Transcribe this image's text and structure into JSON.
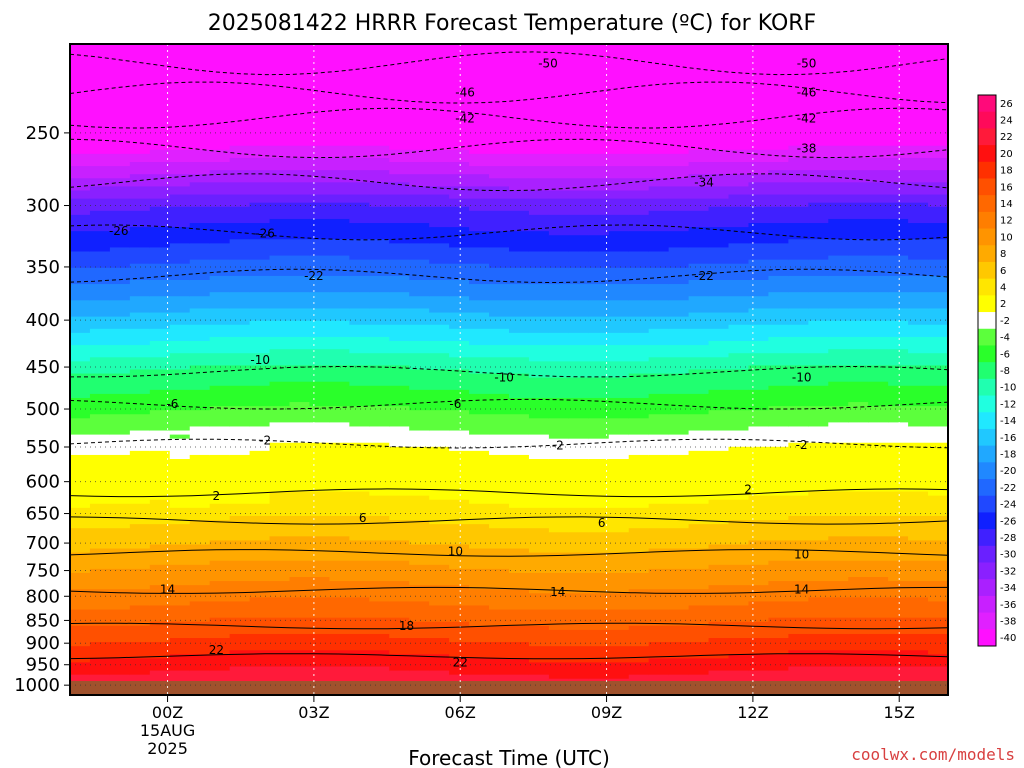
{
  "chart_data": {
    "type": "heatmap",
    "title": "2025081422 HRRR Forecast Temperature (ºC) for KORF",
    "xlabel": "Forecast Time (UTC)",
    "ylabel": "",
    "x_ticks": [
      "00Z",
      "03Z",
      "06Z",
      "09Z",
      "12Z",
      "15Z"
    ],
    "x_date": [
      "15AUG",
      "2025"
    ],
    "x_range": [
      -2,
      16
    ],
    "y_ticks": [
      250,
      300,
      350,
      400,
      450,
      500,
      550,
      600,
      650,
      700,
      750,
      800,
      850,
      900,
      950,
      1000
    ],
    "ylim_hPa": [
      200,
      1025
    ],
    "y_scale": "log-pressure",
    "grid": true,
    "colorbar": {
      "levels": [
        26,
        24,
        22,
        20,
        18,
        16,
        14,
        12,
        10,
        8,
        6,
        4,
        2,
        -2,
        -4,
        -6,
        -8,
        -10,
        -12,
        -14,
        -16,
        -18,
        -20,
        -22,
        -24,
        -26,
        -28,
        -30,
        -32,
        -34,
        -36,
        -38,
        -40
      ],
      "colors": [
        "#ff0a7a",
        "#ff0a5a",
        "#ff1a3a",
        "#ff1010",
        "#ff3000",
        "#ff5000",
        "#ff6800",
        "#ff7e00",
        "#ff9400",
        "#ffaa00",
        "#ffc800",
        "#ffe600",
        "#ffff00",
        "#ffffff",
        "#5cff3c",
        "#2aff2a",
        "#20ff70",
        "#20ffb0",
        "#20ffe0",
        "#20e8ff",
        "#20c8ff",
        "#20a8ff",
        "#2088ff",
        "#2068ff",
        "#2048ff",
        "#1020ff",
        "#4020ff",
        "#6a20ff",
        "#8a20ff",
        "#aa20ff",
        "#c820ff",
        "#e020ff",
        "#ff10ff"
      ]
    },
    "isotherm_labels": [
      {
        "value": "-50",
        "points": [
          [
            7.8,
            210
          ],
          [
            13.1,
            210
          ]
        ]
      },
      {
        "value": "-46",
        "points": [
          [
            6.1,
            226
          ],
          [
            13.1,
            226
          ]
        ]
      },
      {
        "value": "-42",
        "points": [
          [
            6.1,
            241
          ],
          [
            13.1,
            241
          ]
        ]
      },
      {
        "value": "-38",
        "points": [
          [
            13.1,
            260
          ]
        ]
      },
      {
        "value": "-34",
        "points": [
          [
            11.0,
            283
          ]
        ]
      },
      {
        "value": "-26",
        "points": [
          [
            -1.0,
            320
          ],
          [
            2.0,
            322
          ]
        ]
      },
      {
        "value": "-22",
        "points": [
          [
            3.0,
            358
          ],
          [
            11.0,
            358
          ]
        ]
      },
      {
        "value": "-10",
        "points": [
          [
            1.9,
            442
          ],
          [
            6.9,
            462
          ],
          [
            13.0,
            462
          ]
        ]
      },
      {
        "value": "-6",
        "points": [
          [
            0.1,
            494
          ],
          [
            5.9,
            494
          ]
        ]
      },
      {
        "value": "-2",
        "points": [
          [
            2.0,
            541
          ],
          [
            8.0,
            548
          ],
          [
            13.0,
            547
          ]
        ]
      },
      {
        "value": "2",
        "points": [
          [
            1.0,
            622
          ],
          [
            11.9,
            612
          ]
        ]
      },
      {
        "value": "6",
        "points": [
          [
            4.0,
            657
          ],
          [
            8.9,
            666
          ]
        ]
      },
      {
        "value": "10",
        "points": [
          [
            5.9,
            715
          ],
          [
            13.0,
            720
          ]
        ]
      },
      {
        "value": "14",
        "points": [
          [
            0.0,
            787
          ],
          [
            8.0,
            791
          ],
          [
            13.0,
            787
          ]
        ]
      },
      {
        "value": "18",
        "points": [
          [
            4.9,
            862
          ]
        ]
      },
      {
        "value": "22",
        "points": [
          [
            1.0,
            915
          ],
          [
            6.0,
            945
          ]
        ]
      }
    ]
  },
  "credit": "coolwx.com/models"
}
